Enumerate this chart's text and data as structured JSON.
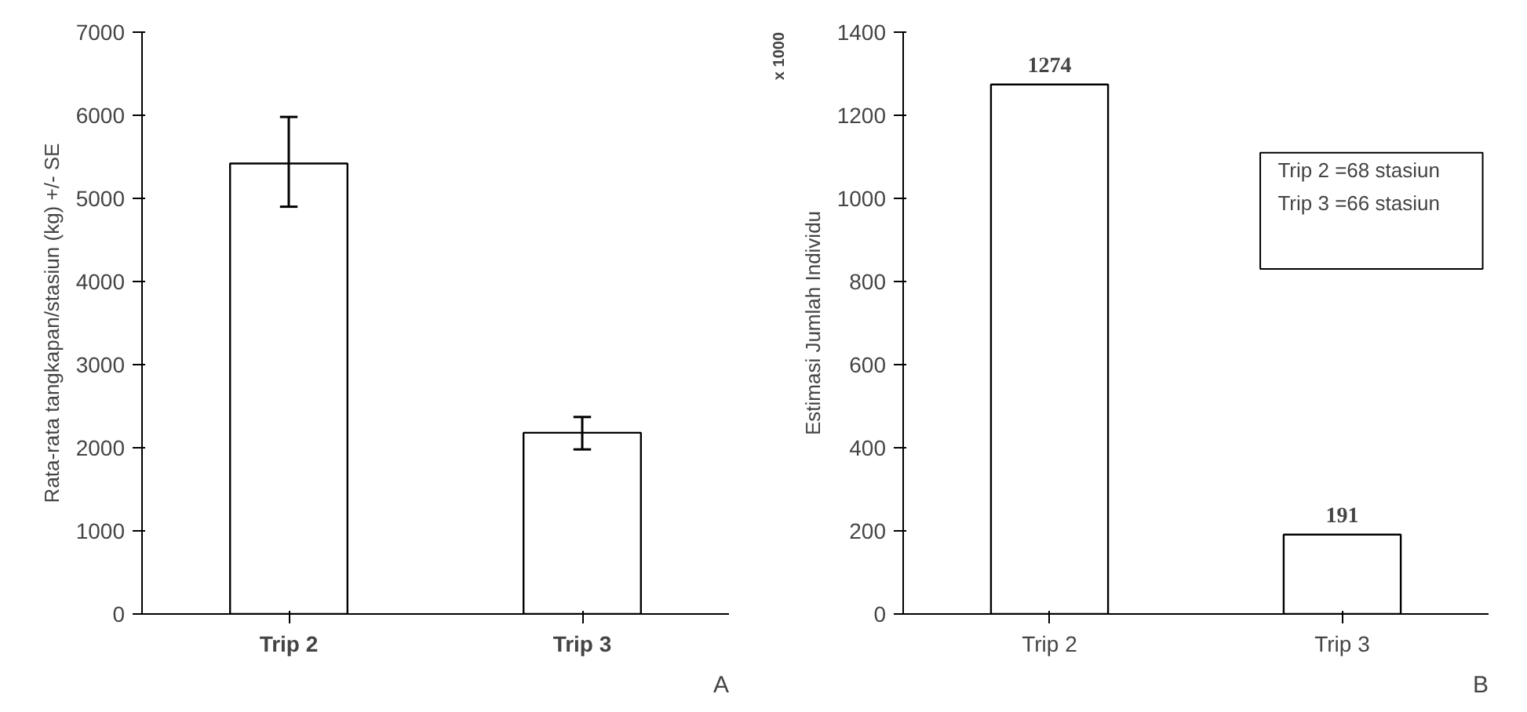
{
  "chart_data": [
    {
      "type": "bar",
      "categories": [
        "Trip 2",
        "Trip 3"
      ],
      "values": [
        5420,
        2180
      ],
      "errors": [
        [
          4900,
          5980
        ],
        [
          1980,
          2370
        ]
      ],
      "color": "#ffffff",
      "ylabel": "Rata-rata tangkapan/stasiun (kg) +/- SE",
      "ylim": [
        0,
        7000
      ],
      "yticks": [
        0,
        1000,
        2000,
        3000,
        4000,
        5000,
        6000,
        7000
      ],
      "grid": false,
      "annotations": [
        "A"
      ]
    },
    {
      "type": "bar",
      "categories": [
        "Trip 2",
        "Trip 3"
      ],
      "values": [
        1274,
        191
      ],
      "color": "#ffffff",
      "data_labels": true,
      "ylabel": "Estimasi Jumlah Individu",
      "ylim": [
        0,
        1400
      ],
      "yticks": [
        0,
        200,
        400,
        600,
        800,
        1000,
        1200,
        1400
      ],
      "grid": false,
      "annotations": [
        "x 1000",
        "Trip 2 =68 stasiun",
        "Trip 3 =66 stasiun",
        "B"
      ]
    }
  ]
}
